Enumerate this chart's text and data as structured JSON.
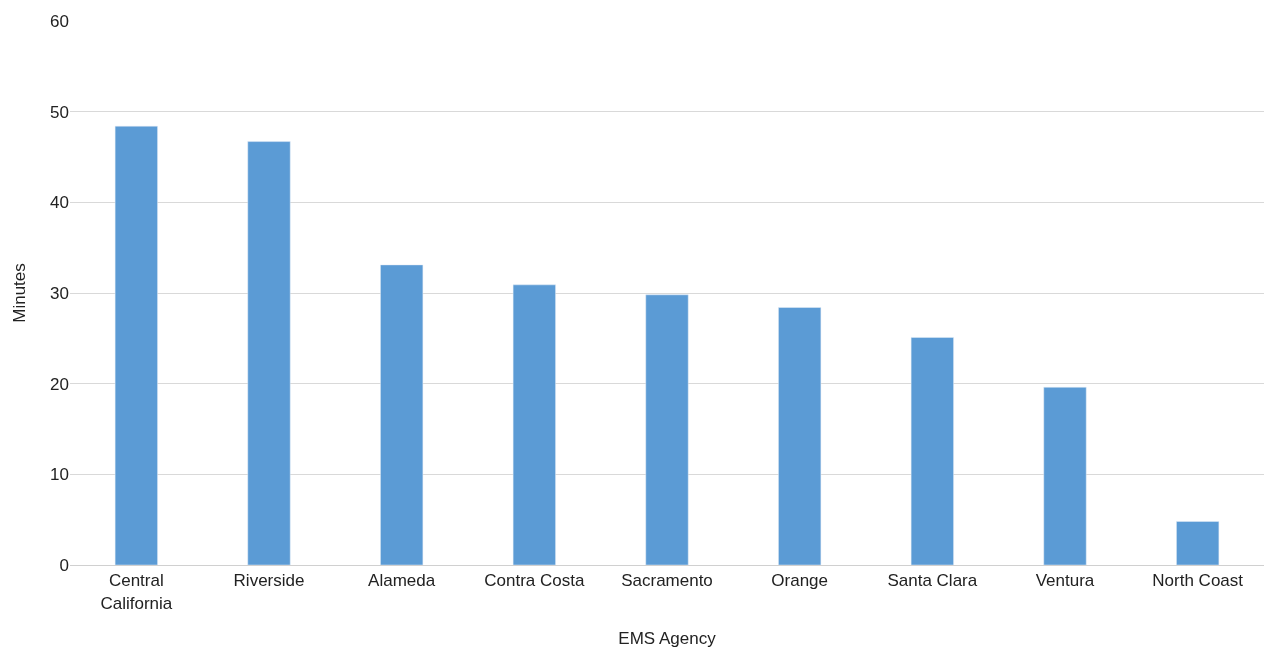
{
  "chart_data": {
    "type": "bar",
    "xlabel": "EMS Agency",
    "ylabel": "Minutes",
    "categories": [
      "Central California",
      "Riverside",
      "Alameda",
      "Contra Costa",
      "Sacramento",
      "Orange",
      "Santa Clara",
      "Ventura",
      "North Coast"
    ],
    "values": [
      48.4,
      46.7,
      33.1,
      30.9,
      29.8,
      28.4,
      25.1,
      19.6,
      4.8
    ],
    "color": "#5b9bd5",
    "ylim": [
      0,
      60
    ],
    "yticks": [
      0,
      10,
      20,
      30,
      40,
      50,
      60
    ],
    "grid": "y",
    "legend": false
  }
}
